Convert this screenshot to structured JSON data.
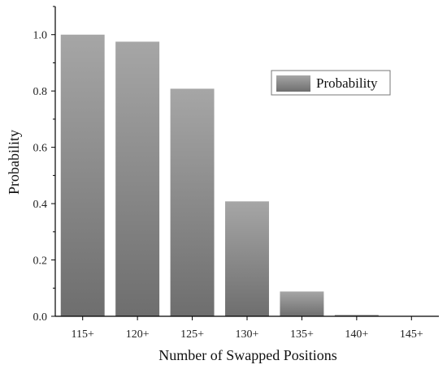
{
  "chart_data": {
    "type": "bar",
    "title": "",
    "xlabel": "Number of Swapped Positions",
    "ylabel": "Probability",
    "categories": [
      "115+",
      "120+",
      "125+",
      "130+",
      "135+",
      "140+",
      "145+"
    ],
    "series": [
      {
        "name": "Probability",
        "values": [
          1.0,
          0.975,
          0.808,
          0.408,
          0.088,
          0.005,
          0.0
        ]
      }
    ],
    "ylim": [
      0,
      1.1
    ],
    "yticks": [
      0.0,
      0.2,
      0.4,
      0.6,
      0.8,
      1.0
    ],
    "ytick_labels": [
      "0.0",
      "0.2",
      "0.4",
      "0.6",
      "0.8",
      "1.0"
    ],
    "grid": false,
    "legend_position": "top-right",
    "colors": {
      "bar_top": "#a6a6a6",
      "bar_bottom": "#6e6e6e",
      "axis": "#000000"
    }
  }
}
